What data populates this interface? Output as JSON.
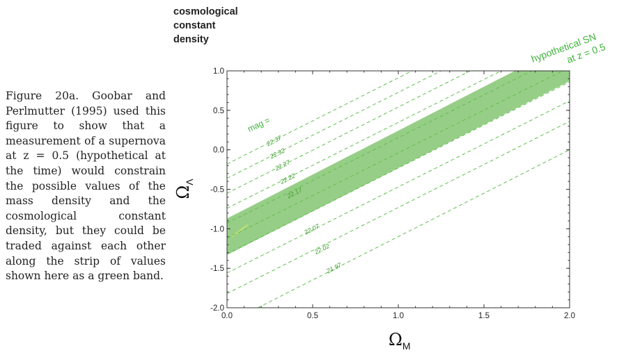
{
  "caption": "Figure 20a. Goobar and Perlmutter (1995) used this figure to show that a measurement of a supernova at z = 0.5 (hypothetical at the time) would constrain the possible values of the mass density and the cosmological constant density, but they could be traded against each other along the strip of values shown here as a green band.",
  "chart_data": {
    "type": "line",
    "ylabel_top": [
      "cosmological",
      "constant",
      "density"
    ],
    "xlabel": {
      "symbol": "Ω",
      "sub": "M"
    },
    "ylabel": {
      "symbol": "Ω",
      "sub": "Λ"
    },
    "xlim": [
      0.0,
      2.0
    ],
    "ylim": [
      -2.0,
      1.0
    ],
    "xticks": [
      "0.0",
      "0.5",
      "1.0",
      "1.5",
      "2.0"
    ],
    "yticks": [
      "1.0",
      "0.5",
      "0.0",
      "-0.5",
      "-1.0",
      "-1.5",
      "-2.0"
    ],
    "band": {
      "color": "#8cc97a",
      "lower": [
        [
          0.0,
          -1.33
        ],
        [
          2.0,
          0.87
        ]
      ],
      "upper": [
        [
          0.0,
          -0.87
        ],
        [
          1.68,
          1.0
        ]
      ]
    },
    "contours": [
      {
        "label": "22.37",
        "p1": [
          0.0,
          -0.18
        ],
        "p2": [
          1.08,
          1.0
        ],
        "label_at": [
          0.28,
          0.09
        ]
      },
      {
        "label": "22.32",
        "p1": [
          0.0,
          -0.36
        ],
        "p2": [
          1.25,
          1.0
        ],
        "label_at": [
          0.3,
          -0.07
        ]
      },
      {
        "label": "22.27",
        "p1": [
          0.0,
          -0.55
        ],
        "p2": [
          1.42,
          1.0
        ],
        "label_at": [
          0.33,
          -0.22
        ]
      },
      {
        "label": "22.22",
        "p1": [
          0.0,
          -0.74
        ],
        "p2": [
          1.6,
          1.0
        ],
        "label_at": [
          0.36,
          -0.39
        ]
      },
      {
        "label": "22.17",
        "p1": [
          0.0,
          -0.93
        ],
        "p2": [
          1.78,
          1.0
        ],
        "label_at": [
          0.4,
          -0.57
        ]
      },
      {
        "label": "",
        "p1": [
          0.0,
          -1.12
        ],
        "p2": [
          1.96,
          1.0
        ],
        "label_at": null
      },
      {
        "label": "22.07",
        "p1": [
          0.0,
          -1.32
        ],
        "p2": [
          2.0,
          0.86
        ],
        "label_at": [
          0.5,
          -1.03
        ]
      },
      {
        "label": "22.02",
        "p1": [
          0.0,
          -1.56
        ],
        "p2": [
          2.0,
          0.62
        ],
        "label_at": [
          0.56,
          -1.28
        ]
      },
      {
        "label": "21.97",
        "p1": [
          0.0,
          -1.82
        ],
        "p2": [
          2.0,
          0.36
        ],
        "label_at": [
          0.63,
          -1.52
        ]
      },
      {
        "label": "",
        "p1": [
          0.18,
          -2.0
        ],
        "p2": [
          2.0,
          0.0
        ],
        "label_at": null
      }
    ],
    "mag_label": "mag =",
    "annotation_lines": [
      "hypothetical SN",
      "at  z = 0.5"
    ],
    "colors": {
      "band": "#8cc97a",
      "contour": "#5cbf4c",
      "text_green": "#3fb13a"
    }
  }
}
